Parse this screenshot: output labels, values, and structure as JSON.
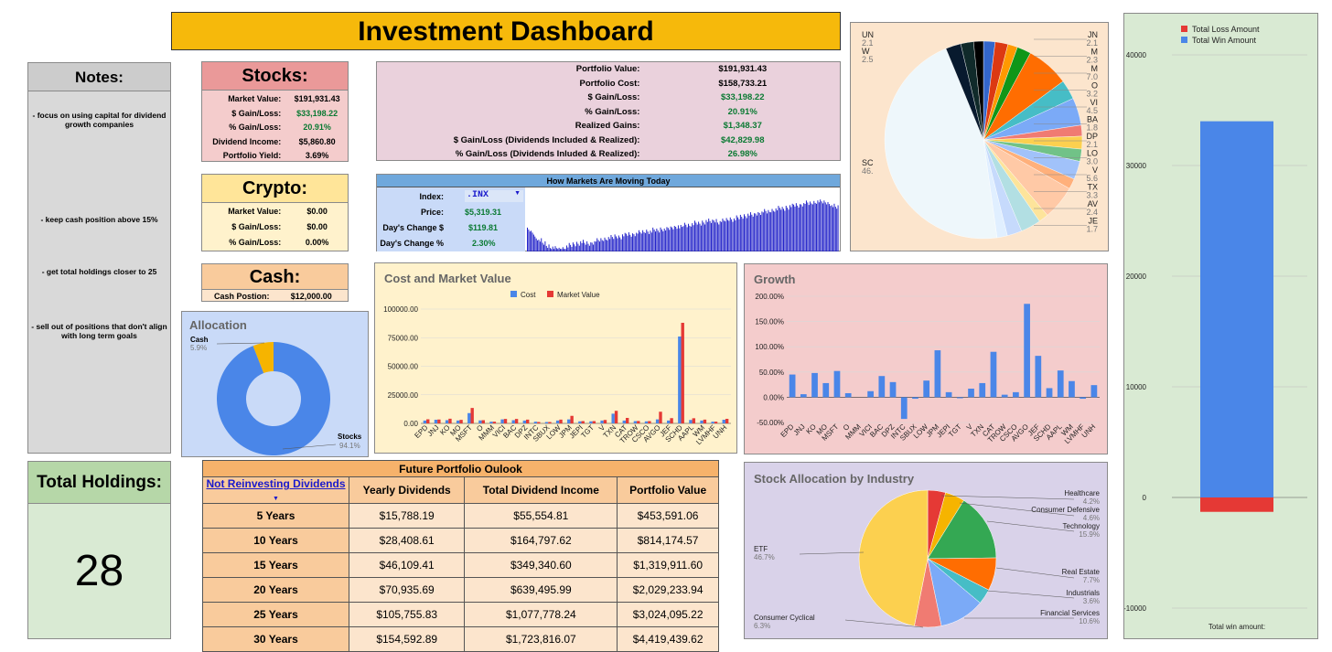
{
  "title": "Investment Dashboard",
  "notes": {
    "header": "Notes:",
    "items": [
      "- focus on using capital for dividend growth companies",
      "- keep cash position above 15%",
      "- get total holdings closer to 25",
      "- sell out of positions that don't align with long term goals"
    ]
  },
  "holdings": {
    "header": "Total Holdings:",
    "value": "28"
  },
  "stocks": {
    "header": "Stocks:",
    "rows": [
      {
        "label": "Market Value:",
        "value": "$191,931.43",
        "green": false
      },
      {
        "label": "$ Gain/Loss:",
        "value": "$33,198.22",
        "green": true
      },
      {
        "label": "% Gain/Loss:",
        "value": "20.91%",
        "green": true
      },
      {
        "label": "Dividend Income:",
        "value": "$5,860.80",
        "green": false
      },
      {
        "label": "Portfolio Yield:",
        "value": "3.69%",
        "green": false
      }
    ]
  },
  "crypto": {
    "header": "Crypto:",
    "rows": [
      {
        "label": "Market Value:",
        "value": "$0.00"
      },
      {
        "label": "$ Gain/Loss:",
        "value": "$0.00"
      },
      {
        "label": "% Gain/Loss:",
        "value": "0.00%"
      }
    ]
  },
  "cash": {
    "header": "Cash:",
    "label": "Cash Postion:",
    "value": "$12,000.00"
  },
  "portfolio": {
    "rows": [
      {
        "label": "Portfolio Value:",
        "value": "$191,931.43",
        "green": false
      },
      {
        "label": "Portfolio Cost:",
        "value": "$158,733.21",
        "green": false
      },
      {
        "label": "$ Gain/Loss:",
        "value": "$33,198.22",
        "green": true
      },
      {
        "label": "% Gain/Loss:",
        "value": "20.91%",
        "green": true
      },
      {
        "label": "Realized Gains:",
        "value": "$1,348.37",
        "green": true
      },
      {
        "label": "$ Gain/Loss (Dividends Included & Realized):",
        "value": "$42,829.98",
        "green": true
      },
      {
        "label": "% Gain/Loss (Dividends Inluded & Realized):",
        "value": "26.98%",
        "green": true
      }
    ]
  },
  "markets": {
    "header": "How Markets Are Moving Today",
    "index_label": "Index:",
    "index_value": ".INX",
    "price_label": "Price:",
    "price_value": "$5,319.31",
    "change_label": "Day's Change $",
    "change_value": "$119.81",
    "pct_label": "Day's Change %",
    "pct_value": "2.30%"
  },
  "allocation": {
    "title": "Allocation",
    "cash_label": "Cash",
    "cash_pct": "5.9%",
    "stocks_label": "Stocks",
    "stocks_pct": "94.1%",
    "colors": {
      "stocks": "#4a86e8",
      "cash": "#f6b400"
    }
  },
  "future": {
    "header": "Future Portfolio Oulook",
    "dropdown": "Not Reinvesting Dividends",
    "columns": [
      "Yearly Dividends",
      "Total Dividend Income",
      "Portfolio Value"
    ],
    "rows": [
      [
        "5 Years",
        "$15,788.19",
        "$55,554.81",
        "$453,591.06"
      ],
      [
        "10 Years",
        "$28,408.61",
        "$164,797.62",
        "$814,174.57"
      ],
      [
        "15 Years",
        "$46,109.41",
        "$349,340.60",
        "$1,319,911.60"
      ],
      [
        "20 Years",
        "$70,935.69",
        "$639,495.99",
        "$2,029,233.94"
      ],
      [
        "25 Years",
        "$105,755.83",
        "$1,077,778.24",
        "$3,024,095.22"
      ],
      [
        "30 Years",
        "$154,592.89",
        "$1,723,816.07",
        "$4,419,439.62"
      ]
    ]
  },
  "chart_data": [
    {
      "id": "cost-market",
      "type": "bar",
      "title": "Cost and Market Value",
      "legend": [
        "Cost",
        "Market Value"
      ],
      "categories": [
        "EPD",
        "JNJ",
        "KO",
        "MO",
        "MSFT",
        "O",
        "MMM",
        "VICI",
        "BAC",
        "DPZ",
        "INTC",
        "SBUX",
        "LOW",
        "JPM",
        "JEPI",
        "TGT",
        "V",
        "TXN",
        "CAT",
        "TROW",
        "CSCO",
        "AVGO",
        "JEF",
        "SCHD",
        "AAPL",
        "WM",
        "LVMHF",
        "UNH"
      ],
      "series": [
        {
          "name": "Cost",
          "values": [
            2500,
            3200,
            2800,
            2500,
            9000,
            2600,
            1500,
            3500,
            2800,
            2500,
            1500,
            1200,
            2500,
            3500,
            1800,
            1800,
            2500,
            8500,
            2500,
            2000,
            1800,
            3500,
            2500,
            76000,
            3000,
            2500,
            1500,
            3200
          ]
        },
        {
          "name": "Market Value",
          "values": [
            3600,
            3400,
            4100,
            3100,
            13500,
            2800,
            1500,
            3900,
            3900,
            3300,
            1200,
            1200,
            3300,
            6600,
            2000,
            2000,
            3000,
            11000,
            4800,
            2100,
            2000,
            10200,
            4600,
            88000,
            4500,
            3300,
            1500,
            4000
          ]
        }
      ],
      "ylim": [
        0,
        100000
      ],
      "yticks": [
        "0.00",
        "25000.00",
        "50000.00",
        "75000.00",
        "100000.00"
      ],
      "colors": [
        "#4a86e8",
        "#e53935"
      ]
    },
    {
      "id": "growth",
      "type": "bar",
      "title": "Growth",
      "categories": [
        "EPD",
        "JNJ",
        "KO",
        "MO",
        "MSFT",
        "O",
        "MMM",
        "VICI",
        "BAC",
        "DPZ",
        "INTC",
        "SBUX",
        "LOW",
        "JPM",
        "JEPI",
        "TGT",
        "V",
        "TXN",
        "CAT",
        "TROW",
        "CSCO",
        "AVGO",
        "JEF",
        "SCHD",
        "AAPL",
        "WM",
        "LVMHF",
        "UNH"
      ],
      "values": [
        45,
        6,
        48,
        28,
        52,
        8,
        0,
        12,
        42,
        30,
        -43,
        -3,
        33,
        93,
        10,
        -2,
        17,
        28,
        90,
        5,
        10,
        185,
        82,
        18,
        53,
        32,
        -3,
        24
      ],
      "ylim": [
        -50,
        200
      ],
      "yticks": [
        "-50.00%",
        "0.00%",
        "50.00%",
        "100.00%",
        "150.00%",
        "200.00%"
      ],
      "colors": [
        "#4a86e8"
      ]
    },
    {
      "id": "top-pie",
      "type": "pie",
      "labels_left": [
        {
          "name": "UN",
          "pct": "2.1"
        },
        {
          "name": "W",
          "pct": "2.5"
        },
        {
          "name": "SC",
          "pct": "46."
        }
      ],
      "labels_right": [
        {
          "name": "JN",
          "pct": "2.1"
        },
        {
          "name": "M",
          "pct": "2.3"
        },
        {
          "name": "M",
          "pct": "7.0"
        },
        {
          "name": "O",
          "pct": "3.2"
        },
        {
          "name": "VI",
          "pct": "4.5"
        },
        {
          "name": "BA",
          "pct": "1.8"
        },
        {
          "name": "DP",
          "pct": "2.1"
        },
        {
          "name": "LO",
          "pct": "3.0"
        },
        {
          "name": "V",
          "pct": "5.6"
        },
        {
          "name": "TX",
          "pct": "3.3"
        },
        {
          "name": "AV",
          "pct": "2.4"
        },
        {
          "name": "JE",
          "pct": "1.7"
        }
      ],
      "slices": [
        {
          "value": 1.9,
          "color": "#3366cc"
        },
        {
          "value": 2.1,
          "color": "#dc3912"
        },
        {
          "value": 1.6,
          "color": "#ff9900"
        },
        {
          "value": 2.3,
          "color": "#109618"
        },
        {
          "value": 7.0,
          "color": "#ff6d01"
        },
        {
          "value": 3.2,
          "color": "#46bdc6"
        },
        {
          "value": 4.5,
          "color": "#7baaf7"
        },
        {
          "value": 1.8,
          "color": "#f07b72"
        },
        {
          "value": 2.1,
          "color": "#fcd04f"
        },
        {
          "value": 2.0,
          "color": "#71c287"
        },
        {
          "value": 3.0,
          "color": "#a1c2fa"
        },
        {
          "value": 1.7,
          "color": "#ffb07b"
        },
        {
          "value": 5.6,
          "color": "#ffc9a6"
        },
        {
          "value": 1.6,
          "color": "#fde49b"
        },
        {
          "value": 3.3,
          "color": "#b2dfe3"
        },
        {
          "value": 2.4,
          "color": "#c6dafc"
        },
        {
          "value": 1.7,
          "color": "#e0efff"
        },
        {
          "value": 46.0,
          "color": "#eef7fb"
        },
        {
          "value": 2.5,
          "color": "#081a2e"
        },
        {
          "value": 2.1,
          "color": "#102a2a"
        },
        {
          "value": 1.6,
          "color": "#000000"
        }
      ]
    },
    {
      "id": "industry-pie",
      "type": "pie",
      "title": "Stock Allocation by Industry",
      "slices": [
        {
          "name": "Healthcare",
          "pct": "4.2%",
          "value": 4.2,
          "color": "#e53935"
        },
        {
          "name": "Consumer Defensive",
          "pct": "4.6%",
          "value": 4.6,
          "color": "#f6b400"
        },
        {
          "name": "Technology",
          "pct": "15.9%",
          "value": 15.9,
          "color": "#34a853"
        },
        {
          "name": "Real Estate",
          "pct": "7.7%",
          "value": 7.7,
          "color": "#ff6d01"
        },
        {
          "name": "Industrials",
          "pct": "3.6%",
          "value": 3.6,
          "color": "#46bdc6"
        },
        {
          "name": "Financial Services",
          "pct": "10.6%",
          "value": 10.6,
          "color": "#7baaf7"
        },
        {
          "name": "Consumer Cyclical",
          "pct": "6.3%",
          "value": 6.3,
          "color": "#f07b72"
        },
        {
          "name": "ETF",
          "pct": "46.7%",
          "value": 46.7,
          "color": "#fcd04f"
        }
      ]
    },
    {
      "id": "win-loss",
      "type": "bar",
      "legend": [
        "Total Loss Amount",
        "Total Win Amount"
      ],
      "series": [
        {
          "name": "Total Loss Amount",
          "values": [
            -1300
          ]
        },
        {
          "name": "Total Win Amount",
          "values": [
            34000
          ]
        }
      ],
      "ylim": [
        -10000,
        40000
      ],
      "yticks": [
        "-10000",
        "0",
        "10000",
        "20000",
        "30000",
        "40000"
      ],
      "xlabel": "Total win amount:",
      "colors": [
        "#e53935",
        "#4a86e8"
      ]
    },
    {
      "id": "market-spark",
      "type": "bar",
      "note": "intraday index bars",
      "values": [
        0.45,
        0.4,
        0.3,
        0.25,
        0.2,
        0.15,
        0.12,
        0.1,
        0.08,
        0.1,
        0.14,
        0.16,
        0.18,
        0.2,
        0.22,
        0.2,
        0.19,
        0.22,
        0.25,
        0.26,
        0.28,
        0.3,
        0.31,
        0.33,
        0.32,
        0.35,
        0.37,
        0.36,
        0.38,
        0.4,
        0.41,
        0.43,
        0.42,
        0.45,
        0.44,
        0.47,
        0.46,
        0.48,
        0.5,
        0.52,
        0.5,
        0.55,
        0.54,
        0.56,
        0.58,
        0.57,
        0.6,
        0.62,
        0.61,
        0.63,
        0.6,
        0.62,
        0.64,
        0.66,
        0.65,
        0.68,
        0.7,
        0.72,
        0.74,
        0.73,
        0.76,
        0.78,
        0.8,
        0.79,
        0.82,
        0.84,
        0.86,
        0.85,
        0.88,
        0.9,
        0.92,
        0.91,
        0.94,
        0.96,
        0.95,
        0.97,
        0.99,
        0.98,
        0.97,
        0.95,
        0.9,
        0.88
      ],
      "colors": [
        "#1f1fc8"
      ]
    }
  ]
}
